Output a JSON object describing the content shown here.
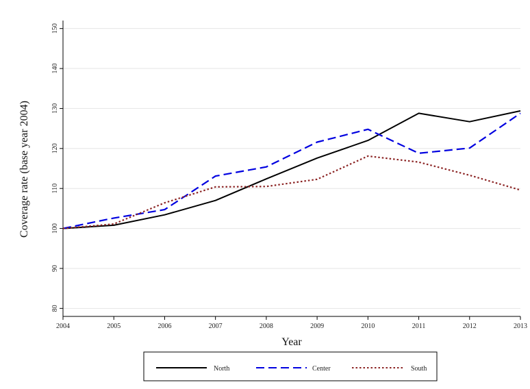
{
  "chart_data": {
    "type": "line",
    "title": "",
    "xlabel": "Year",
    "ylabel": "Coverage rate (base year 2004)",
    "x": [
      2004,
      2005,
      2006,
      2007,
      2008,
      2009,
      2010,
      2011,
      2012,
      2013
    ],
    "xlim": [
      2004,
      2013
    ],
    "ylim": [
      78,
      152
    ],
    "yticks": [
      80,
      90,
      100,
      110,
      120,
      130,
      140,
      150
    ],
    "grid": true,
    "legend_position": "bottom",
    "series": [
      {
        "name": "North",
        "color": "#000000",
        "dash": "solid",
        "values": [
          100.0,
          100.8,
          103.4,
          107.0,
          112.4,
          117.6,
          122.0,
          128.8,
          126.7,
          129.4
        ]
      },
      {
        "name": "Center",
        "color": "#0000e0",
        "dash": "dashed",
        "values": [
          100.0,
          102.6,
          104.7,
          113.1,
          115.4,
          121.6,
          124.8,
          118.8,
          120.1,
          128.8
        ]
      },
      {
        "name": "South",
        "color": "#8b2323",
        "dash": "dotted",
        "values": [
          100.0,
          101.1,
          106.4,
          110.4,
          110.5,
          112.3,
          118.1,
          116.6,
          113.3,
          109.6
        ]
      }
    ]
  }
}
